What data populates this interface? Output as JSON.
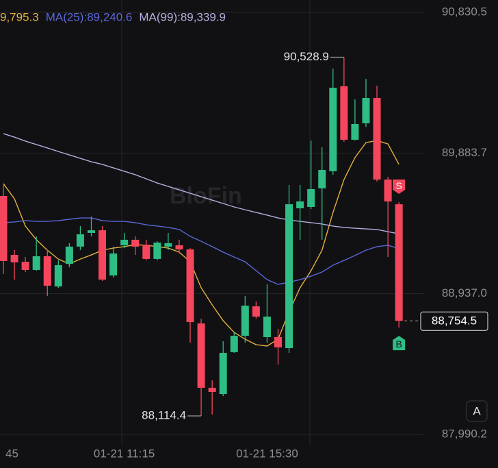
{
  "chart_data": {
    "type": "candlestick",
    "up_color": "#2ebd85",
    "down_color": "#f6465d",
    "grid": true,
    "ylim": [
      87916.4,
      90913.5
    ],
    "yticks": [
      {
        "value": 90830.5,
        "label": "90,830.5"
      },
      {
        "value": 89883.7,
        "label": "89,883.7"
      },
      {
        "value": 88937.0,
        "label": "88,937.0"
      },
      {
        "value": 87990.2,
        "label": "87,990.2"
      }
    ],
    "categories": [
      "45",
      null,
      null,
      null,
      null,
      null,
      null,
      null,
      null,
      null,
      null,
      "01-21 11:15",
      null,
      null,
      null,
      null,
      null,
      null,
      null,
      null,
      null,
      null,
      null,
      null,
      "01-21 15:30",
      null,
      null,
      null,
      null,
      null,
      null,
      null,
      null,
      null,
      null,
      null,
      null
    ],
    "open": [
      89595,
      89198,
      89152,
      89097,
      89189,
      88986,
      89138,
      89254,
      89346,
      89364,
      89060,
      89263,
      89300,
      89267,
      89171,
      89254,
      89263,
      89235,
      88737,
      88304,
      88262,
      88544,
      88654,
      88852,
      88645,
      88645,
      88571,
      89512,
      89521,
      89646,
      89761,
      90333,
      89973,
      90084,
      90254,
      89705,
      89539
    ],
    "high": [
      89669,
      89231,
      89184,
      89323,
      89231,
      89161,
      89277,
      89392,
      89456,
      89392,
      89254,
      89346,
      89323,
      89300,
      89290,
      89346,
      89300,
      89244,
      88769,
      88354,
      88617,
      88677,
      88922,
      88885,
      89000,
      88700,
      89669,
      89669,
      89968,
      89922,
      90452,
      90528.9,
      90245,
      90383,
      90337,
      89724,
      89553
    ],
    "low": [
      89069,
      89032,
      89083,
      89092,
      88922,
      88977,
      89115,
      89231,
      89323,
      89023,
      89046,
      89244,
      89198,
      89161,
      89161,
      89231,
      89208,
      88608,
      88114.4,
      88124,
      88248,
      88539,
      88608,
      88769,
      88608,
      88460,
      88539,
      89300,
      89507,
      89300,
      89738,
      89959,
      89968,
      90060,
      89692,
      89184,
      88709
    ],
    "close": [
      89157,
      89148,
      89097,
      89189,
      88991,
      89129,
      89254,
      89337,
      89364,
      89032,
      89208,
      89300,
      89254,
      89171,
      89281,
      89277,
      89235,
      88746,
      88304,
      88276,
      88539,
      88654,
      88857,
      88783,
      88783,
      88576,
      89539,
      89558,
      89641,
      89770,
      90323,
      89973,
      90079,
      90254,
      89705,
      89558,
      88754.5
    ],
    "series": [
      {
        "label": "9,795.3",
        "color": "#e6b13e",
        "values": [
          89678,
          89576,
          89392,
          89300,
          89230,
          89170,
          89138,
          89170,
          89198,
          89230,
          89244,
          89254,
          89267,
          89263,
          89254,
          89244,
          89217,
          89152,
          88977,
          88862,
          88756,
          88677,
          88631,
          88594,
          88585,
          88631,
          88815,
          88977,
          89092,
          89230,
          89484,
          89705,
          89853,
          89954,
          89968,
          89945,
          89807
        ]
      },
      {
        "label": "MA(25):89,240.6",
        "color": "#5a67d8",
        "values": [
          89415,
          89420,
          89429,
          89424,
          89424,
          89429,
          89438,
          89447,
          89447,
          89429,
          89424,
          89424,
          89415,
          89401,
          89392,
          89383,
          89369,
          89323,
          89290,
          89254,
          89217,
          89184,
          89152,
          89092,
          89032,
          89000,
          89014,
          89032,
          89055,
          89083,
          89129,
          89161,
          89194,
          89230,
          89254,
          89263,
          89240.6
        ]
      },
      {
        "label": "MA(99):89,339.9",
        "color": "#b4aede",
        "values": [
          90014,
          89991,
          89964,
          89941,
          89918,
          89894,
          89871,
          89848,
          89825,
          89807,
          89784,
          89761,
          89738,
          89710,
          89682,
          89659,
          89636,
          89613,
          89590,
          89567,
          89544,
          89521,
          89502,
          89484,
          89466,
          89447,
          89433,
          89424,
          89415,
          89406,
          89392,
          89383,
          89378,
          89373,
          89369,
          89355,
          89339.9
        ]
      }
    ],
    "max_label": "90,528.9",
    "min_label": "88,114.4",
    "last_label": "88,754.5",
    "sell_marker": "S",
    "buy_marker": "B",
    "watermark": "BloFin",
    "scale_button": "A"
  }
}
